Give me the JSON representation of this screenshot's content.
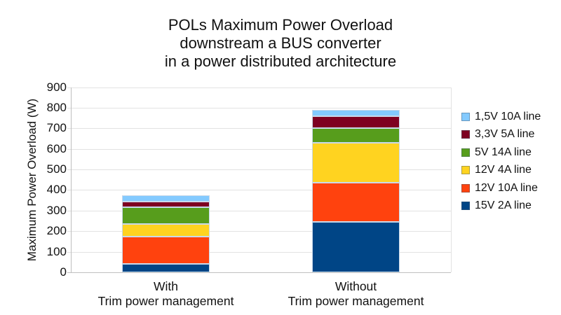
{
  "chart_data": {
    "type": "bar",
    "stacked": true,
    "title": "POLs Maximum Power Overload downstream a BUS converter in a power distributed architecture",
    "title_lines": [
      "POLs Maximum Power Overload",
      "downstream a BUS converter",
      "in a power distributed architecture"
    ],
    "ylabel": "Maximum Power Overload (W)",
    "xlabel": "",
    "ylim": [
      0,
      900
    ],
    "ytick_step": 100,
    "grid": true,
    "legend_position": "right",
    "categories": [
      "With Trim power management",
      "Without Trim power management"
    ],
    "categories_multiline": [
      [
        "With",
        "Trim power management"
      ],
      [
        "Without",
        "Trim power management"
      ]
    ],
    "series": [
      {
        "name": "15V 2A line",
        "color": "#004586",
        "values": [
          40,
          245
        ]
      },
      {
        "name": "12V 10A line",
        "color": "#FF420E",
        "values": [
          135,
          190
        ]
      },
      {
        "name": "12V 4A line",
        "color": "#FFD320",
        "values": [
          60,
          195
        ]
      },
      {
        "name": "5V 14A line",
        "color": "#579D1C",
        "values": [
          80,
          70
        ]
      },
      {
        "name": "3,3V 5A line",
        "color": "#7E0021",
        "values": [
          30,
          60
        ]
      },
      {
        "name": "1,5V 10A line",
        "color": "#83CAFF",
        "values": [
          30,
          30
        ]
      }
    ],
    "totals": [
      375,
      790
    ],
    "colors": {
      "background": "#ffffff",
      "gridline": "#e2e2e2",
      "axis": "#bfbfbf",
      "text": "#111111",
      "bar_border": "#c9d9ea"
    }
  }
}
